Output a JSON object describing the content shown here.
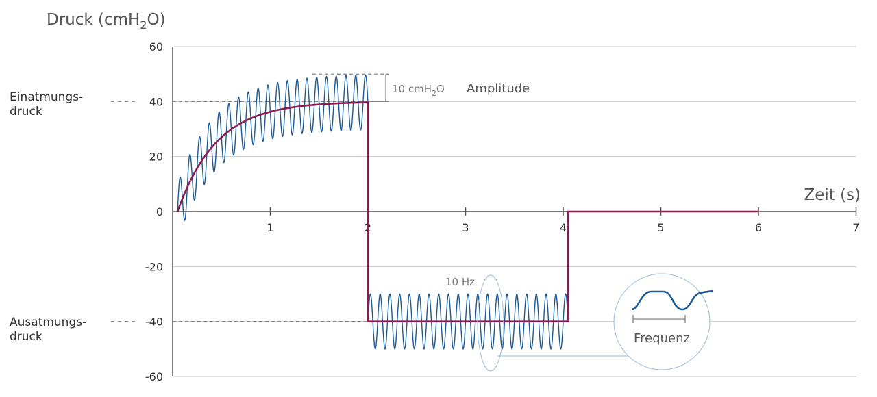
{
  "chart_data": {
    "type": "line",
    "ylabel": {
      "main": "Druck (cmH",
      "sub": "2",
      "end": "O)"
    },
    "xlabel": "Zeit (s)",
    "ylim": [
      -60,
      60
    ],
    "xlim": [
      0,
      7
    ],
    "yticks": [
      -60,
      -40,
      -20,
      0,
      20,
      40,
      60
    ],
    "xticks": [
      1,
      2,
      3,
      4,
      5,
      6,
      7
    ],
    "ytick_labels": [
      "-60",
      "-40",
      "-20",
      "0",
      "20",
      "40",
      "60"
    ],
    "xtick_labels": [
      "1",
      "2",
      "3",
      "4",
      "5",
      "6",
      "7"
    ],
    "grid": true,
    "inspiratory_label": [
      "Einatmungs-",
      "druck"
    ],
    "expiratory_label": [
      "Ausatmungs-",
      "druck"
    ],
    "inspiratory_pressure": 40,
    "expiratory_pressure": -40,
    "amplitude_note": {
      "value": "10 cmH",
      "sub": "2",
      "end": "O",
      "label": "Amplitude",
      "cmh2o": 10
    },
    "frequency_note": {
      "value": "10 Hz",
      "label": "Frequenz",
      "hz": 10
    },
    "series": [
      {
        "color": "#8b1a4e",
        "segments": [
          {
            "kind": "rise",
            "x_start": 0.05,
            "x_end": 2.0,
            "y_start": 0,
            "y_end": 40,
            "time_constant": 0.4
          },
          {
            "kind": "step",
            "x": [
              2.0,
              2.0,
              4.05,
              4.05,
              6.0
            ],
            "y": [
              40,
              -40,
              -40,
              0,
              0
            ]
          }
        ]
      },
      {
        "color": "#1a5a96",
        "oscillation": [
          {
            "x_start": 0.05,
            "x_end": 2.0,
            "center": "rise",
            "amplitude": 10,
            "frequency_hz": 10
          },
          {
            "x_start": 2.0,
            "x_end": 4.05,
            "center": -40,
            "amplitude": 10,
            "frequency_hz": 10
          }
        ]
      }
    ]
  },
  "colors": {
    "grid": "#c8c8c8",
    "axis": "#555555",
    "pressure": "#8b1a4e",
    "oscillation": "#1a5a96",
    "callout": "#a9c6e0",
    "guide": "#777777"
  }
}
